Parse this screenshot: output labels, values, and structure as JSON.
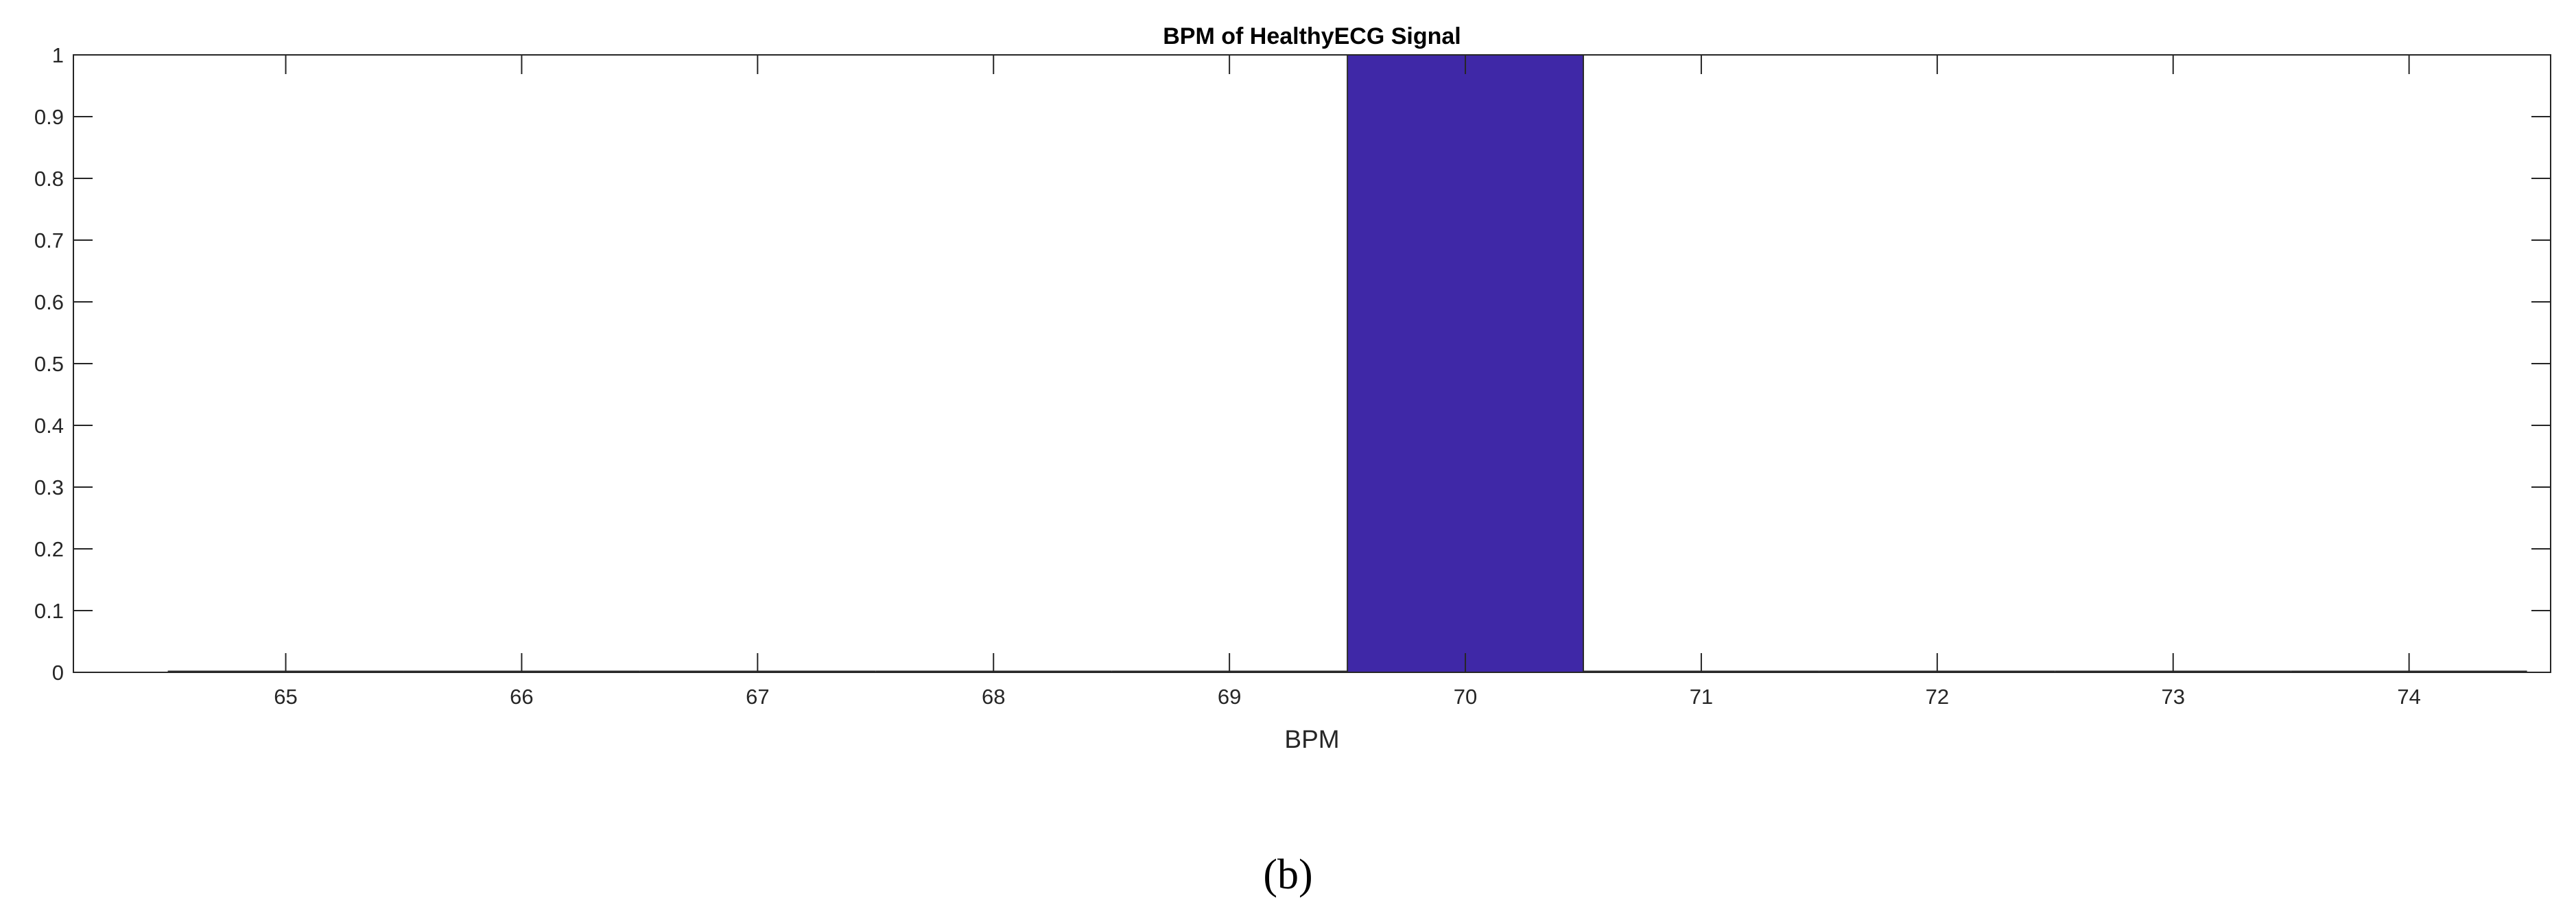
{
  "chart_data": {
    "type": "bar",
    "title": "BPM of HealthyECG Signal",
    "xlabel": "BPM",
    "ylabel": "",
    "categories": [
      65,
      66,
      67,
      68,
      69,
      70,
      71,
      72,
      73,
      74
    ],
    "values": [
      0,
      0,
      0,
      0,
      0,
      1,
      0,
      0,
      0,
      0
    ],
    "xlim": [
      64.1,
      74.6
    ],
    "ylim": [
      0,
      1
    ],
    "xticks": [
      "65",
      "66",
      "67",
      "68",
      "69",
      "70",
      "71",
      "72",
      "73",
      "74"
    ],
    "yticks": [
      "0",
      "0.1",
      "0.2",
      "0.3",
      "0.4",
      "0.5",
      "0.6",
      "0.7",
      "0.8",
      "0.9",
      "1"
    ],
    "bar_color": "#3f28a7",
    "grid": false,
    "legend": "none"
  },
  "caption": "(b)"
}
